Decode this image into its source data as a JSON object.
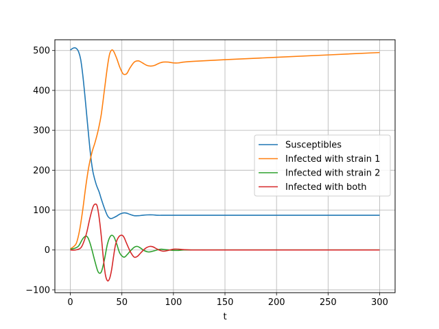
{
  "chart_data": {
    "type": "line",
    "title": "",
    "xlabel": "t",
    "ylabel": "",
    "xlim": [
      -15,
      315
    ],
    "ylim": [
      -107,
      527
    ],
    "xticks": [
      0,
      50,
      100,
      150,
      200,
      250,
      300
    ],
    "yticks": [
      -100,
      0,
      100,
      200,
      300,
      400,
      500
    ],
    "grid": true,
    "legend_position": "center-right",
    "series": [
      {
        "name": "Susceptibles",
        "color": "#1f77b4",
        "x": [
          0,
          2,
          4,
          6,
          8,
          10,
          12,
          14,
          16,
          18,
          20,
          22,
          25,
          28,
          30,
          33,
          36,
          38,
          40,
          42,
          45,
          48,
          52,
          55,
          58,
          62,
          66,
          70,
          75,
          80,
          85,
          90,
          95,
          100,
          110,
          120,
          150,
          200,
          250,
          300
        ],
        "y": [
          501,
          505,
          507,
          505,
          497,
          478,
          440,
          390,
          335,
          280,
          230,
          195,
          165,
          145,
          128,
          105,
          86,
          80,
          79,
          81,
          85,
          90,
          93,
          92,
          89,
          86,
          86,
          87,
          88,
          88,
          87,
          87,
          87,
          87,
          87,
          87,
          87,
          87,
          87,
          87
        ]
      },
      {
        "name": "Infected with strain 1",
        "color": "#ff7f0e",
        "x": [
          0,
          3,
          6,
          9,
          12,
          15,
          18,
          21,
          24,
          27,
          30,
          33,
          36,
          38,
          40,
          42,
          45,
          48,
          51,
          53,
          55,
          58,
          62,
          66,
          70,
          74,
          78,
          82,
          86,
          90,
          95,
          100,
          105,
          110,
          120,
          150,
          200,
          250,
          300
        ],
        "y": [
          3,
          8,
          18,
          50,
          100,
          160,
          210,
          245,
          270,
          300,
          340,
          400,
          460,
          490,
          501,
          498,
          480,
          458,
          442,
          440,
          443,
          457,
          471,
          474,
          469,
          463,
          461,
          463,
          468,
          471,
          471,
          469,
          469,
          471,
          473,
          477,
          483,
          489,
          495
        ]
      },
      {
        "name": "Infected with strain 2",
        "color": "#2ca02c",
        "x": [
          0,
          4,
          8,
          12,
          15,
          17,
          19,
          21,
          24,
          27,
          30,
          33,
          36,
          39,
          42,
          45,
          48,
          52,
          55,
          58,
          62,
          65,
          68,
          72,
          76,
          80,
          84,
          88,
          92,
          96,
          100,
          105,
          110,
          120,
          150,
          200,
          250,
          300
        ],
        "y": [
          2,
          4,
          10,
          28,
          35,
          31,
          18,
          0,
          -30,
          -55,
          -55,
          -25,
          15,
          35,
          34,
          15,
          -8,
          -18,
          -12,
          -3,
          7,
          9,
          5,
          -2,
          -5,
          -3,
          0,
          2,
          1,
          0,
          -1,
          -1,
          0,
          0,
          0,
          0,
          0,
          0
        ]
      },
      {
        "name": "Infected with both",
        "color": "#d62728",
        "x": [
          0,
          5,
          10,
          13,
          16,
          19,
          22,
          24,
          26,
          28,
          30,
          32,
          34,
          36,
          38,
          40,
          42,
          44,
          47,
          50,
          52,
          54,
          56,
          59,
          62,
          65,
          68,
          71,
          74,
          77,
          80,
          83,
          86,
          90,
          95,
          100,
          105,
          110,
          120,
          150,
          200,
          250,
          300
        ],
        "y": [
          0,
          0,
          5,
          20,
          45,
          80,
          108,
          115,
          110,
          80,
          35,
          -20,
          -62,
          -77,
          -72,
          -50,
          -15,
          15,
          33,
          37,
          32,
          20,
          8,
          -8,
          -18,
          -16,
          -8,
          0,
          6,
          9,
          8,
          4,
          0,
          -3,
          -1,
          2,
          2,
          1,
          0,
          0,
          0,
          0,
          0
        ]
      }
    ]
  }
}
